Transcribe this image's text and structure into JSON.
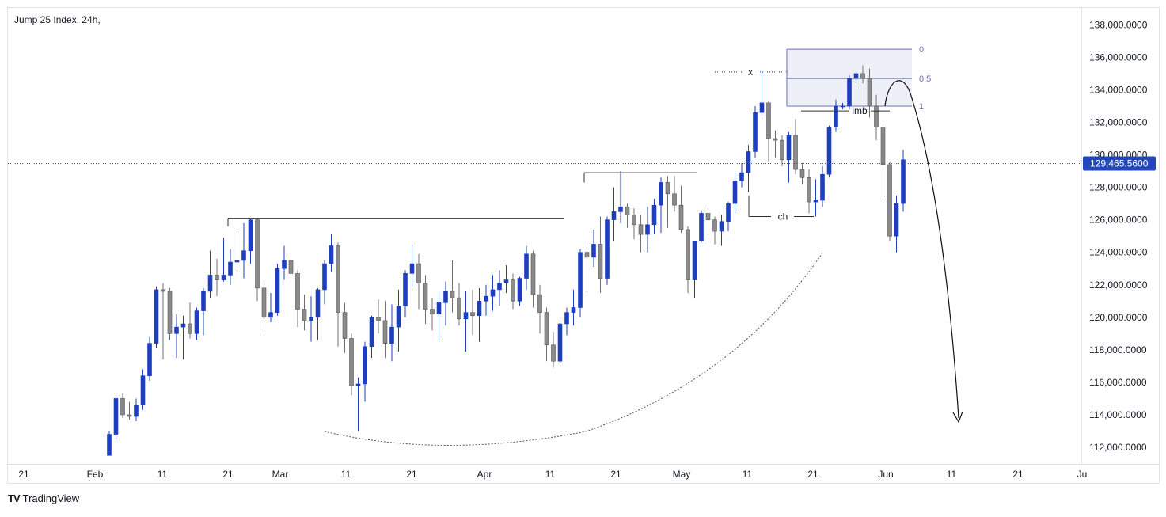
{
  "title": "Jump 25 Index, 24h,",
  "branding": {
    "logo_icon": "TV",
    "name": "TradingView"
  },
  "colors": {
    "bull": "#1e3fbd",
    "bear": "#8a8a8a",
    "price_label_bg": "#2347b8",
    "grid_border": "#e0e3eb",
    "annotation": "#131722",
    "fib_fill": "#eef0f8",
    "fib_line": "#6b6fb0"
  },
  "chart_data": {
    "type": "candlestick",
    "x_tick_labels": [
      "21",
      "Feb",
      "11",
      "21",
      "Mar",
      "11",
      "21",
      "Apr",
      "11",
      "21",
      "May",
      "11",
      "21",
      "Jun",
      "11",
      "21",
      "Ju"
    ],
    "y_tick_labels": [
      "112,000.0000",
      "114,000.0000",
      "116,000.0000",
      "118,000.0000",
      "120,000.0000",
      "122,000.0000",
      "124,000.0000",
      "126,000.0000",
      "128,000.0000",
      "130,000.0000",
      "132,000.0000",
      "134,000.0000",
      "136,000.0000",
      "138,000.0000"
    ],
    "ylim": [
      111000,
      138800
    ],
    "current_price": 129465.56,
    "current_price_label": "129,465.5600",
    "candles": [
      [
        111500,
        112800,
        111500,
        113000
      ],
      [
        112800,
        115000,
        112500,
        115200
      ],
      [
        115000,
        114000,
        113800,
        115300
      ],
      [
        114000,
        113900,
        113700,
        114800
      ],
      [
        113900,
        114600,
        113600,
        115000
      ],
      [
        114600,
        116400,
        114300,
        116800
      ],
      [
        116400,
        118400,
        116100,
        118800
      ],
      [
        118400,
        121700,
        118100,
        121900
      ],
      [
        121700,
        121600,
        117400,
        122100
      ],
      [
        121600,
        119000,
        118600,
        121800
      ],
      [
        119000,
        119400,
        117500,
        120200
      ],
      [
        119400,
        119600,
        117400,
        120100
      ],
      [
        119600,
        119000,
        118700,
        120900
      ],
      [
        119000,
        120400,
        118600,
        120600
      ],
      [
        120400,
        121600,
        118900,
        121800
      ],
      [
        121600,
        122600,
        121200,
        124100
      ],
      [
        122600,
        122300,
        121300,
        123600
      ],
      [
        122300,
        122600,
        122200,
        124900
      ],
      [
        122600,
        123400,
        122000,
        124200
      ],
      [
        123400,
        123500,
        122800,
        125300
      ],
      [
        123500,
        124100,
        122400,
        125800
      ],
      [
        124100,
        126000,
        123300,
        126100
      ],
      [
        126000,
        121800,
        121000,
        126100
      ],
      [
        121800,
        120000,
        119100,
        122100
      ],
      [
        120000,
        120300,
        119700,
        121500
      ],
      [
        120300,
        123000,
        120100,
        123300
      ],
      [
        123000,
        123500,
        122300,
        124400
      ],
      [
        123500,
        122700,
        122000,
        123800
      ],
      [
        122700,
        120500,
        119400,
        122900
      ],
      [
        120500,
        119800,
        119200,
        121400
      ],
      [
        119800,
        120000,
        118500,
        121300
      ],
      [
        120000,
        121700,
        118600,
        121800
      ],
      [
        121700,
        123300,
        120800,
        123500
      ],
      [
        123300,
        124400,
        122800,
        125100
      ],
      [
        124400,
        120300,
        118200,
        124600
      ],
      [
        120300,
        118700,
        117800,
        120900
      ],
      [
        118700,
        115800,
        115200,
        119000
      ],
      [
        115800,
        115900,
        113000,
        116300
      ],
      [
        115900,
        118200,
        114800,
        118500
      ],
      [
        118200,
        120000,
        117500,
        120100
      ],
      [
        120000,
        119800,
        119000,
        121100
      ],
      [
        119800,
        118400,
        117500,
        121000
      ],
      [
        118400,
        119400,
        117300,
        120800
      ],
      [
        119400,
        120700,
        117900,
        121700
      ],
      [
        120700,
        122700,
        120000,
        122900
      ],
      [
        122700,
        123300,
        121900,
        124500
      ],
      [
        123300,
        122100,
        120500,
        123900
      ],
      [
        122100,
        120500,
        119600,
        122600
      ],
      [
        120500,
        120200,
        119200,
        121200
      ],
      [
        120200,
        120900,
        118600,
        121600
      ],
      [
        120900,
        121600,
        119500,
        122200
      ],
      [
        121600,
        121200,
        120300,
        123500
      ],
      [
        121200,
        119900,
        119500,
        122100
      ],
      [
        119900,
        120300,
        117900,
        121600
      ],
      [
        120300,
        120100,
        118900,
        121700
      ],
      [
        120100,
        121000,
        118500,
        121800
      ],
      [
        121000,
        121300,
        120100,
        122000
      ],
      [
        121300,
        121700,
        120400,
        122600
      ],
      [
        121700,
        122100,
        120700,
        122900
      ],
      [
        122100,
        122300,
        121500,
        123200
      ],
      [
        122300,
        121000,
        120500,
        122700
      ],
      [
        121000,
        122400,
        120700,
        122500
      ],
      [
        122400,
        123900,
        121700,
        124400
      ],
      [
        123900,
        121400,
        120600,
        124100
      ],
      [
        121400,
        120300,
        119000,
        122000
      ],
      [
        120300,
        118300,
        117300,
        120600
      ],
      [
        118300,
        117300,
        116900,
        119100
      ],
      [
        117300,
        119600,
        117000,
        119800
      ],
      [
        119600,
        120300,
        118900,
        120600
      ],
      [
        120300,
        120600,
        119500,
        121700
      ],
      [
        120600,
        124000,
        120000,
        124200
      ],
      [
        124000,
        123700,
        121500,
        124700
      ],
      [
        123700,
        124500,
        123100,
        125400
      ],
      [
        124500,
        122400,
        121500,
        126200
      ],
      [
        122400,
        126000,
        122000,
        126200
      ],
      [
        126000,
        126500,
        124700,
        128000
      ],
      [
        126500,
        126800,
        125800,
        129000
      ],
      [
        126800,
        126300,
        125500,
        127000
      ],
      [
        126300,
        125700,
        124800,
        126700
      ],
      [
        125700,
        125100,
        124000,
        126300
      ],
      [
        125100,
        125700,
        124000,
        126800
      ],
      [
        125700,
        126900,
        125100,
        127300
      ],
      [
        126900,
        128300,
        125200,
        128600
      ],
      [
        128300,
        127600,
        125500,
        128700
      ],
      [
        127600,
        126900,
        126500,
        128700
      ],
      [
        126900,
        125400,
        125200,
        128100
      ],
      [
        125400,
        122300,
        121500,
        125600
      ],
      [
        122300,
        124700,
        121200,
        124700
      ],
      [
        124700,
        126400,
        124600,
        126600
      ],
      [
        126400,
        126000,
        124800,
        126700
      ],
      [
        126000,
        125300,
        124500,
        126200
      ],
      [
        125300,
        125900,
        124400,
        126300
      ],
      [
        125900,
        127000,
        125300,
        127100
      ],
      [
        127000,
        128400,
        126400,
        128900
      ],
      [
        128400,
        128900,
        128000,
        129500
      ],
      [
        128900,
        130200,
        127700,
        130600
      ],
      [
        130200,
        132600,
        129800,
        133000
      ],
      [
        132600,
        133200,
        132400,
        135100
      ],
      [
        133200,
        131000,
        129600,
        133300
      ],
      [
        131000,
        130900,
        129800,
        131500
      ],
      [
        130900,
        129700,
        129300,
        131200
      ],
      [
        129700,
        131200,
        128300,
        131400
      ],
      [
        131200,
        129100,
        128800,
        132200
      ],
      [
        129100,
        128600,
        128200,
        129500
      ],
      [
        128600,
        127100,
        126400,
        129100
      ],
      [
        127100,
        127200,
        126200,
        128500
      ],
      [
        127200,
        128800,
        126800,
        129300
      ],
      [
        128800,
        131700,
        128600,
        131800
      ],
      [
        131700,
        133000,
        131400,
        133400
      ],
      [
        133000,
        133000,
        132800,
        133200
      ],
      [
        133000,
        134700,
        132800,
        134900
      ],
      [
        134700,
        135000,
        134400,
        135100
      ],
      [
        135000,
        134700,
        134400,
        135500
      ],
      [
        134700,
        133000,
        132300,
        135300
      ],
      [
        133000,
        131700,
        130900,
        133700
      ],
      [
        131700,
        129400,
        127400,
        131900
      ],
      [
        129400,
        125000,
        124700,
        129600
      ],
      [
        125000,
        127000,
        124000,
        127500
      ],
      [
        127000,
        129700,
        126500,
        130300
      ]
    ],
    "annotations": {
      "x_label": "x",
      "imb_label": "imb",
      "ch_label": "ch",
      "fib_labels": [
        "0",
        "0.5",
        "1"
      ]
    }
  }
}
